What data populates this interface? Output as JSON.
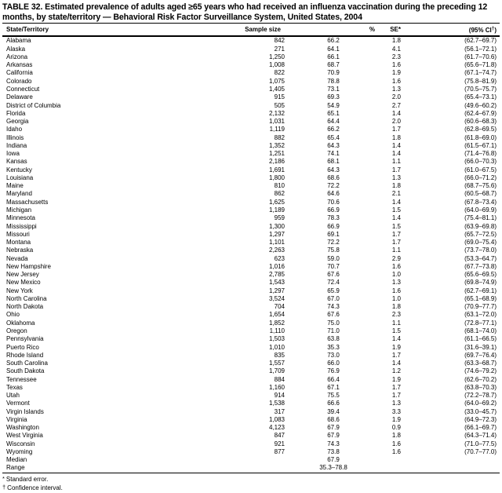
{
  "title_line1": "TABLE 32. Estimated prevalence of adults aged ≥65 years who had received an influenza vaccination during the preceding 12",
  "title_line2": "months, by state/territory — Behavioral Risk Factor Surveillance System, United States, 2004",
  "columns": {
    "state": "State/Territory",
    "sample_size": "Sample size",
    "percent": "%",
    "se": "SE*",
    "ci_prefix": "(95% CI",
    "ci_dagger": "†",
    "ci_suffix": ")"
  },
  "rows": [
    {
      "state": "Alabama",
      "sample": "842",
      "pct": "66.2",
      "se": "1.8",
      "ci": "(62.7–69.7)"
    },
    {
      "state": "Alaska",
      "sample": "271",
      "pct": "64.1",
      "se": "4.1",
      "ci": "(56.1–72.1)"
    },
    {
      "state": "Arizona",
      "sample": "1,250",
      "pct": "66.1",
      "se": "2.3",
      "ci": "(61.7–70.6)"
    },
    {
      "state": "Arkansas",
      "sample": "1,008",
      "pct": "68.7",
      "se": "1.6",
      "ci": "(65.6–71.8)"
    },
    {
      "state": "California",
      "sample": "822",
      "pct": "70.9",
      "se": "1.9",
      "ci": "(67.1–74.7)"
    },
    {
      "state": "Colorado",
      "sample": "1,075",
      "pct": "78.8",
      "se": "1.6",
      "ci": "(75.8–81.9)"
    },
    {
      "state": "Connecticut",
      "sample": "1,405",
      "pct": "73.1",
      "se": "1.3",
      "ci": "(70.5–75.7)"
    },
    {
      "state": "Delaware",
      "sample": "915",
      "pct": "69.3",
      "se": "2.0",
      "ci": "(65.4–73.1)"
    },
    {
      "state": "District of Columbia",
      "sample": "505",
      "pct": "54.9",
      "se": "2.7",
      "ci": "(49.6–60.2)"
    },
    {
      "state": "Florida",
      "sample": "2,132",
      "pct": "65.1",
      "se": "1.4",
      "ci": "(62.4–67.9)"
    },
    {
      "state": "Georgia",
      "sample": "1,031",
      "pct": "64.4",
      "se": "2.0",
      "ci": "(60.6–68.3)"
    },
    {
      "state": "Idaho",
      "sample": "1,119",
      "pct": "66.2",
      "se": "1.7",
      "ci": "(62.8–69.5)"
    },
    {
      "state": "Illinois",
      "sample": "882",
      "pct": "65.4",
      "se": "1.8",
      "ci": "(61.8–69.0)"
    },
    {
      "state": "Indiana",
      "sample": "1,352",
      "pct": "64.3",
      "se": "1.4",
      "ci": "(61.5–67.1)"
    },
    {
      "state": "Iowa",
      "sample": "1,251",
      "pct": "74.1",
      "se": "1.4",
      "ci": "(71.4–76.8)"
    },
    {
      "state": "Kansas",
      "sample": "2,186",
      "pct": "68.1",
      "se": "1.1",
      "ci": "(66.0–70.3)"
    },
    {
      "state": "Kentucky",
      "sample": "1,691",
      "pct": "64.3",
      "se": "1.7",
      "ci": "(61.0–67.5)"
    },
    {
      "state": "Louisiana",
      "sample": "1,800",
      "pct": "68.6",
      "se": "1.3",
      "ci": "(66.0–71.2)"
    },
    {
      "state": "Maine",
      "sample": "810",
      "pct": "72.2",
      "se": "1.8",
      "ci": "(68.7–75.6)"
    },
    {
      "state": "Maryland",
      "sample": "862",
      "pct": "64.6",
      "se": "2.1",
      "ci": "(60.5–68.7)"
    },
    {
      "state": "Massachusetts",
      "sample": "1,625",
      "pct": "70.6",
      "se": "1.4",
      "ci": "(67.8–73.4)"
    },
    {
      "state": "Michigan",
      "sample": "1,189",
      "pct": "66.9",
      "se": "1.5",
      "ci": "(64.0–69.9)"
    },
    {
      "state": "Minnesota",
      "sample": "959",
      "pct": "78.3",
      "se": "1.4",
      "ci": "(75.4–81.1)"
    },
    {
      "state": "Mississippi",
      "sample": "1,300",
      "pct": "66.9",
      "se": "1.5",
      "ci": "(63.9–69.8)"
    },
    {
      "state": "Missouri",
      "sample": "1,297",
      "pct": "69.1",
      "se": "1.7",
      "ci": "(65.7–72.5)"
    },
    {
      "state": "Montana",
      "sample": "1,101",
      "pct": "72.2",
      "se": "1.7",
      "ci": "(69.0–75.4)"
    },
    {
      "state": "Nebraska",
      "sample": "2,263",
      "pct": "75.8",
      "se": "1.1",
      "ci": "(73.7–78.0)"
    },
    {
      "state": "Nevada",
      "sample": "623",
      "pct": "59.0",
      "se": "2.9",
      "ci": "(53.3–64.7)"
    },
    {
      "state": "New Hampshire",
      "sample": "1,016",
      "pct": "70.7",
      "se": "1.6",
      "ci": "(67.7–73.8)"
    },
    {
      "state": "New Jersey",
      "sample": "2,785",
      "pct": "67.6",
      "se": "1.0",
      "ci": "(65.6–69.5)"
    },
    {
      "state": "New Mexico",
      "sample": "1,543",
      "pct": "72.4",
      "se": "1.3",
      "ci": "(69.8–74.9)"
    },
    {
      "state": "New York",
      "sample": "1,297",
      "pct": "65.9",
      "se": "1.6",
      "ci": "(62.7–69.1)"
    },
    {
      "state": "North Carolina",
      "sample": "3,524",
      "pct": "67.0",
      "se": "1.0",
      "ci": "(65.1–68.9)"
    },
    {
      "state": "North Dakota",
      "sample": "704",
      "pct": "74.3",
      "se": "1.8",
      "ci": "(70.9–77.7)"
    },
    {
      "state": "Ohio",
      "sample": "1,654",
      "pct": "67.6",
      "se": "2.3",
      "ci": "(63.1–72.0)"
    },
    {
      "state": "Oklahoma",
      "sample": "1,852",
      "pct": "75.0",
      "se": "1.1",
      "ci": "(72.8–77.1)"
    },
    {
      "state": "Oregon",
      "sample": "1,110",
      "pct": "71.0",
      "se": "1.5",
      "ci": "(68.1–74.0)"
    },
    {
      "state": "Pennsylvania",
      "sample": "1,503",
      "pct": "63.8",
      "se": "1.4",
      "ci": "(61.1–66.5)"
    },
    {
      "state": "Puerto Rico",
      "sample": "1,010",
      "pct": "35.3",
      "se": "1.9",
      "ci": "(31.6–39.1)"
    },
    {
      "state": "Rhode Island",
      "sample": "835",
      "pct": "73.0",
      "se": "1.7",
      "ci": "(69.7–76.4)"
    },
    {
      "state": "South Carolina",
      "sample": "1,557",
      "pct": "66.0",
      "se": "1.4",
      "ci": "(63.3–68.7)"
    },
    {
      "state": "South Dakota",
      "sample": "1,709",
      "pct": "76.9",
      "se": "1.2",
      "ci": "(74.6–79.2)"
    },
    {
      "state": "Tennessee",
      "sample": "884",
      "pct": "66.4",
      "se": "1.9",
      "ci": "(62.6–70.2)"
    },
    {
      "state": "Texas",
      "sample": "1,160",
      "pct": "67.1",
      "se": "1.7",
      "ci": "(63.8–70.3)"
    },
    {
      "state": "Utah",
      "sample": "914",
      "pct": "75.5",
      "se": "1.7",
      "ci": "(72.2–78.7)"
    },
    {
      "state": "Vermont",
      "sample": "1,538",
      "pct": "66.6",
      "se": "1.3",
      "ci": "(64.0–69.2)"
    },
    {
      "state": "Virgin Islands",
      "sample": "317",
      "pct": "39.4",
      "se": "3.3",
      "ci": "(33.0–45.7)"
    },
    {
      "state": "Virginia",
      "sample": "1,083",
      "pct": "68.6",
      "se": "1.9",
      "ci": "(64.9–72.3)"
    },
    {
      "state": "Washington",
      "sample": "4,123",
      "pct": "67.9",
      "se": "0.9",
      "ci": "(66.1–69.7)"
    },
    {
      "state": "West Virginia",
      "sample": "847",
      "pct": "67.9",
      "se": "1.8",
      "ci": "(64.3–71.4)"
    },
    {
      "state": "Wisconsin",
      "sample": "921",
      "pct": "74.3",
      "se": "1.6",
      "ci": "(71.0–77.5)"
    },
    {
      "state": "Wyoming",
      "sample": "877",
      "pct": "73.8",
      "se": "1.6",
      "ci": "(70.7–77.0)"
    },
    {
      "state": "Median",
      "sample": "",
      "pct": "67.9",
      "se": "",
      "ci": ""
    },
    {
      "state": "Range",
      "sample": "",
      "pct": "35.3–78.8",
      "se": "",
      "ci": ""
    }
  ],
  "footnotes": [
    {
      "sym": "*",
      "text": "Standard error."
    },
    {
      "sym": "†",
      "text": "Confidence interval."
    }
  ]
}
